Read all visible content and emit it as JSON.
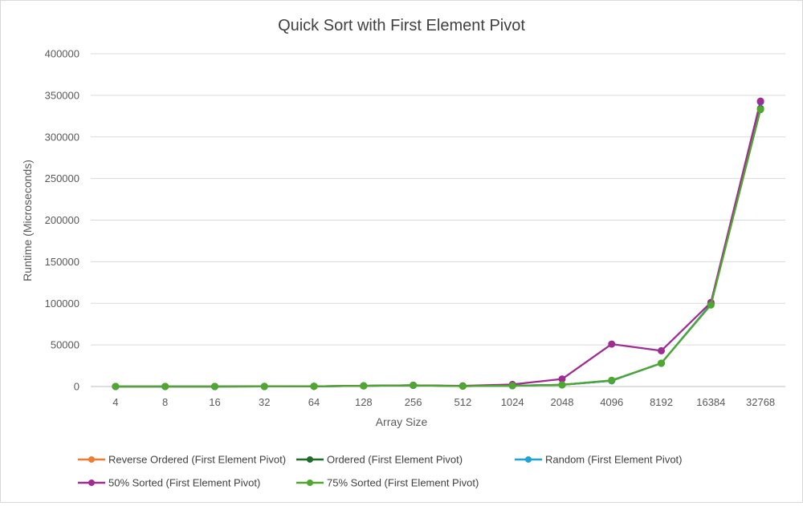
{
  "chart_data": {
    "type": "line",
    "title": "Quick Sort with First Element Pivot",
    "xlabel": "Array Size",
    "ylabel": "Runtime (Microseconds)",
    "categories": [
      "4",
      "8",
      "16",
      "32",
      "64",
      "128",
      "256",
      "512",
      "1024",
      "2048",
      "4096",
      "8192",
      "16384",
      "32768"
    ],
    "ylim": [
      0,
      400000
    ],
    "yticks": [
      "0",
      "50000",
      "100000",
      "150000",
      "200000",
      "250000",
      "300000",
      "350000",
      "400000"
    ],
    "grid": true,
    "legend_position": "bottom",
    "series": [
      {
        "name": "Reverse Ordered (First Element Pivot)",
        "color": "#ed7d31",
        "values": [
          5,
          10,
          25,
          80,
          250,
          800,
          1500,
          500,
          1000,
          2000,
          7000,
          28000,
          99000,
          333000
        ]
      },
      {
        "name": "Ordered (First Element Pivot)",
        "color": "#1e6b2a",
        "values": [
          5,
          10,
          25,
          80,
          250,
          800,
          1500,
          500,
          1000,
          2000,
          7000,
          28000,
          99000,
          334000
        ]
      },
      {
        "name": "Random (First Element Pivot)",
        "color": "#1fa2d8",
        "values": [
          5,
          10,
          25,
          80,
          250,
          800,
          1500,
          500,
          1000,
          2000,
          7000,
          28000,
          99000,
          342000
        ]
      },
      {
        "name": "50% Sorted (First Element Pivot)",
        "color": "#a02b93",
        "values": [
          5,
          10,
          25,
          80,
          250,
          800,
          1500,
          800,
          2500,
          9000,
          51000,
          43000,
          101000,
          343000
        ]
      },
      {
        "name": "75% Sorted (First Element Pivot)",
        "color": "#4ea72e",
        "values": [
          5,
          10,
          25,
          80,
          250,
          800,
          1500,
          500,
          1000,
          2000,
          7500,
          28000,
          98000,
          333000
        ]
      }
    ]
  }
}
